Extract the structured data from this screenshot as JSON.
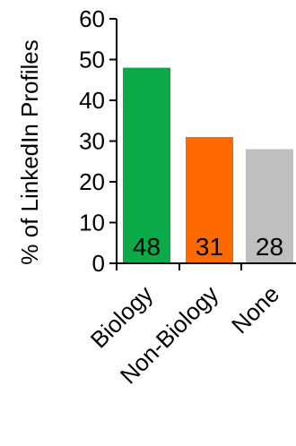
{
  "chart_data": {
    "type": "bar",
    "categories": [
      "Biology",
      "Non-Biology",
      "None"
    ],
    "values": [
      48,
      31,
      28
    ],
    "data_labels": [
      "48",
      "31",
      "28"
    ],
    "title": "",
    "xlabel": "",
    "ylabel": "% of LinkedIn Profiles",
    "ylim": [
      0,
      60
    ],
    "yticks": [
      0,
      10,
      20,
      30,
      40,
      50,
      60
    ],
    "ytick_labels": [
      "0",
      "10",
      "20",
      "30",
      "40",
      "50",
      "60"
    ],
    "grid": false,
    "legend": "none",
    "colors": [
      "#0aaa4a",
      "#ff6a00",
      "#bfbfbf"
    ]
  }
}
